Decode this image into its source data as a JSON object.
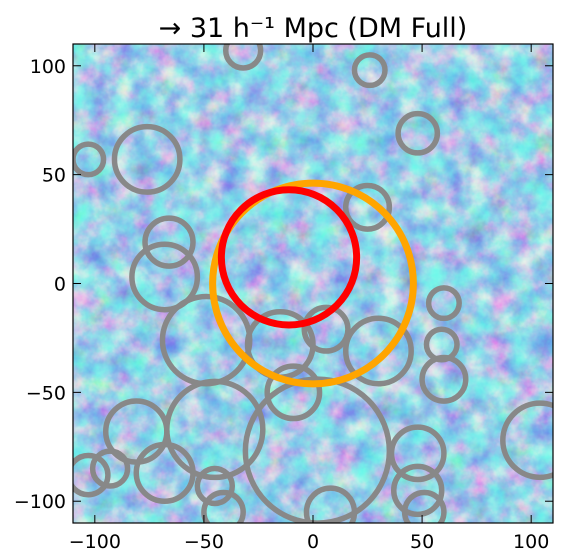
{
  "chart_data": {
    "type": "scatter",
    "title": "→ 31 h⁻¹ Mpc (DM Full)",
    "xlim": [
      -110,
      110
    ],
    "ylim": [
      -110,
      110
    ],
    "xticks": [
      -100,
      -50,
      0,
      50,
      100
    ],
    "yticks": [
      -100,
      -50,
      0,
      50,
      100
    ],
    "xtick_labels": [
      "−100",
      "−50",
      "0",
      "50",
      "100"
    ],
    "ytick_labels": [
      "−100",
      "−50",
      "0",
      "50",
      "100"
    ],
    "xlabel": "",
    "ylabel": "",
    "grid": false,
    "background": "density field colormap (dark navy to pale yellow-green)",
    "colors": {
      "gray": "#888888",
      "orange": "#FFA500",
      "red": "#FF0000",
      "map_dark": "#1f3f86",
      "map_mid": "#3a7fc0",
      "map_light": "#bfe6d0"
    },
    "series": [
      {
        "color_key": "gray",
        "circles": [
          {
            "x": -32,
            "y": 107,
            "r": 8
          },
          {
            "x": 26,
            "y": 98,
            "r": 7
          },
          {
            "x": 48,
            "y": 69,
            "r": 9
          },
          {
            "x": -103,
            "y": 57,
            "r": 7
          },
          {
            "x": -76,
            "y": 57,
            "r": 15
          },
          {
            "x": 25,
            "y": 35,
            "r": 10
          },
          {
            "x": -66,
            "y": 19,
            "r": 11
          },
          {
            "x": -68,
            "y": 3,
            "r": 15
          },
          {
            "x": 60,
            "y": -9,
            "r": 7
          },
          {
            "x": -49,
            "y": -26,
            "r": 20
          },
          {
            "x": -15,
            "y": -28,
            "r": 15
          },
          {
            "x": 6,
            "y": -21,
            "r": 10
          },
          {
            "x": 30,
            "y": -31,
            "r": 15
          },
          {
            "x": 59,
            "y": -28,
            "r": 7
          },
          {
            "x": 60,
            "y": -44,
            "r": 10
          },
          {
            "x": -9,
            "y": -50,
            "r": 12
          },
          {
            "x": -81,
            "y": -68,
            "r": 14
          },
          {
            "x": -45,
            "y": -67,
            "r": 22
          },
          {
            "x": 2,
            "y": -77,
            "r": 33
          },
          {
            "x": 48,
            "y": -78,
            "r": 12
          },
          {
            "x": 104,
            "y": -72,
            "r": 17
          },
          {
            "x": -103,
            "y": -88,
            "r": 9
          },
          {
            "x": -93,
            "y": -85,
            "r": 8
          },
          {
            "x": -68,
            "y": -87,
            "r": 13
          },
          {
            "x": -45,
            "y": -93,
            "r": 8
          },
          {
            "x": 48,
            "y": -95,
            "r": 11
          },
          {
            "x": -41,
            "y": -105,
            "r": 9
          },
          {
            "x": 8,
            "y": -105,
            "r": 11
          },
          {
            "x": 51,
            "y": -105,
            "r": 9
          }
        ]
      },
      {
        "color_key": "orange",
        "circles": [
          {
            "x": 0,
            "y": 0,
            "r": 46
          }
        ]
      },
      {
        "color_key": "red",
        "circles": [
          {
            "x": -11,
            "y": 12,
            "r": 31
          }
        ]
      }
    ]
  }
}
